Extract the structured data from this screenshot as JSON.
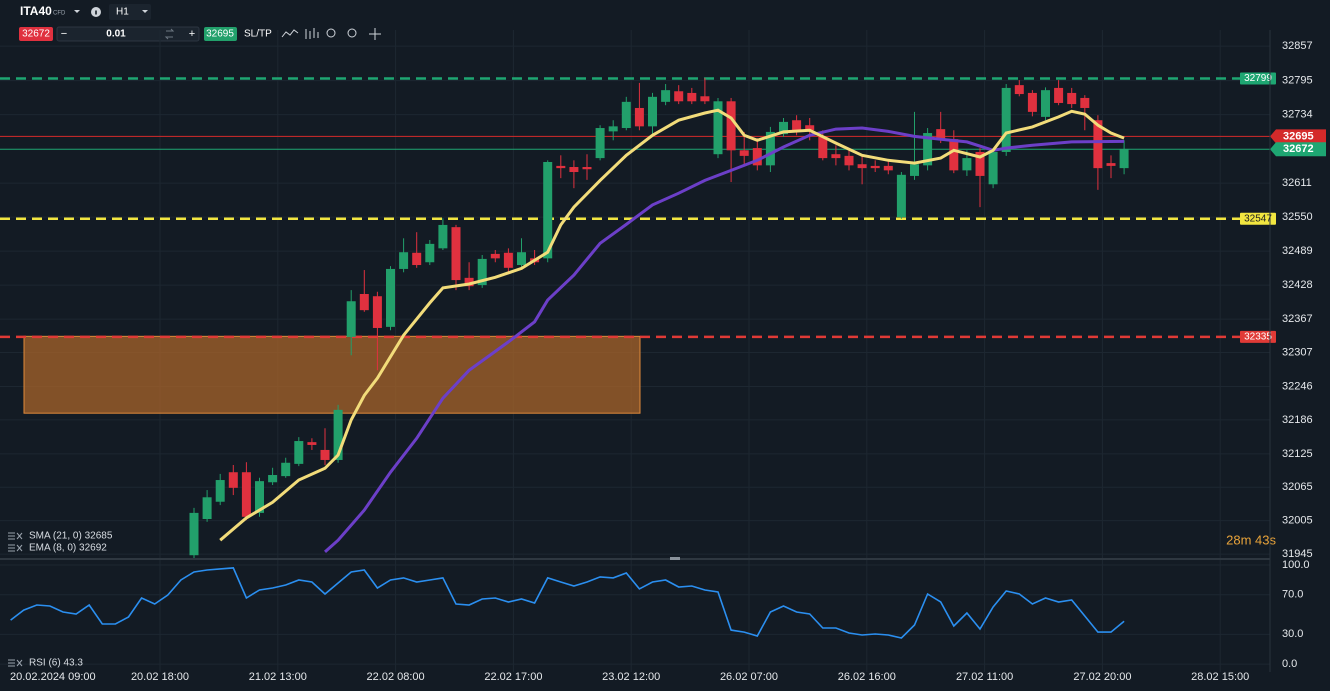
{
  "toolbar": {
    "symbol": "ITA40",
    "badge": "CFD",
    "timeframe": "H1",
    "bid": "32672",
    "volume": "0.01",
    "ask": "32695",
    "sltp": "SL/TP"
  },
  "chart_data": {
    "type": "candlestick",
    "candles": {
      "open": [
        31943,
        32008,
        32039,
        32092,
        32092,
        32019,
        32074,
        32085,
        32107,
        32146,
        32132,
        32114,
        32335,
        32412,
        32408,
        32353,
        32457,
        32486,
        32469,
        32494,
        32532,
        32441,
        32428,
        32484,
        32486,
        32464,
        32476,
        32476,
        32642,
        32640,
        32640,
        32656,
        32704,
        32710,
        32746,
        32713,
        32757,
        32776,
        32773,
        32767,
        32663,
        32758,
        32670,
        32674,
        32643,
        32699,
        32724,
        32715,
        32694,
        32663,
        32660,
        32645,
        32642,
        32642,
        32550,
        32624,
        32643,
        32708,
        32690,
        32634,
        32667,
        32609,
        32667,
        32787,
        32773,
        32730,
        32782,
        32773,
        32764,
        32724,
        32647,
        32638
      ],
      "high": [
        32028,
        32060,
        32089,
        32105,
        32110,
        32082,
        32100,
        32118,
        32155,
        32153,
        32171,
        32213,
        32419,
        32455,
        32416,
        32462,
        32512,
        32523,
        32509,
        32548,
        32536,
        32469,
        32482,
        32491,
        32494,
        32512,
        32491,
        32652,
        32661,
        32652,
        32663,
        32715,
        32724,
        32766,
        32791,
        32773,
        32789,
        32787,
        32782,
        32800,
        32764,
        32764,
        32703,
        32692,
        32712,
        32728,
        32733,
        32728,
        32706,
        32679,
        32670,
        32661,
        32652,
        32652,
        32631,
        32739,
        32710,
        32739,
        32706,
        32670,
        32674,
        32674,
        32789,
        32796,
        32778,
        32783,
        32796,
        32782,
        32769,
        32733,
        32661,
        32688
      ],
      "low": [
        31938,
        32003,
        32033,
        32051,
        32006,
        32012,
        32069,
        32082,
        32103,
        32132,
        32105,
        32109,
        32302,
        32380,
        32275,
        32347,
        32451,
        32459,
        32464,
        32491,
        32419,
        32419,
        32423,
        32469,
        32451,
        32459,
        32464,
        32469,
        32620,
        32602,
        32617,
        32652,
        32688,
        32706,
        32706,
        32696,
        32751,
        32753,
        32753,
        32753,
        32656,
        32613,
        32645,
        32634,
        32631,
        32694,
        32697,
        32688,
        32652,
        32643,
        32634,
        32609,
        32631,
        32627,
        32547,
        32617,
        32634,
        32683,
        32629,
        32624,
        32568,
        32602,
        32660,
        32767,
        32731,
        32724,
        32751,
        32746,
        32706,
        32599,
        32620,
        32627
      ],
      "close": [
        32019,
        32047,
        32078,
        32064,
        32012,
        32076,
        32087,
        32109,
        32148,
        32141,
        32114,
        32204,
        32399,
        32383,
        32351,
        32457,
        32487,
        32464,
        32502,
        32536,
        32437,
        32426,
        32475,
        32476,
        32459,
        32487,
        32469,
        32649,
        32638,
        32631,
        32636,
        32710,
        32713,
        32757,
        32713,
        32766,
        32778,
        32758,
        32758,
        32758,
        32758,
        32670,
        32660,
        32643,
        32703,
        32721,
        32706,
        32706,
        32656,
        32656,
        32643,
        32638,
        32638,
        32634,
        32626,
        32645,
        32701,
        32690,
        32634,
        32656,
        32624,
        32667,
        32782,
        32771,
        32739,
        32778,
        32755,
        32753,
        32746,
        32638,
        32642,
        32672
      ],
      "up_color": "#22a06b",
      "down_color": "#e0313f"
    },
    "ylim": [
      31938,
      32886
    ],
    "yticks": [
      32857,
      32795,
      32734,
      32611,
      32550,
      32489,
      32428,
      32367,
      32307,
      32246,
      32186,
      32125,
      32065,
      32005,
      31945
    ],
    "grid": true,
    "series": [
      {
        "name": "SMA (21, 0) 32685",
        "color": "#6c3fc8",
        "x": [
          10,
          11,
          13,
          15,
          17,
          19,
          21,
          24,
          26,
          27,
          29,
          31,
          33,
          35,
          37,
          39,
          41,
          43,
          45,
          47,
          49,
          51,
          53,
          55,
          57,
          59,
          61,
          62,
          64,
          67,
          71
        ],
        "values": [
          31949,
          31970,
          32024,
          32092,
          32153,
          32225,
          32275,
          32326,
          32362,
          32401,
          32446,
          32503,
          32537,
          32572,
          32593,
          32616,
          32634,
          32652,
          32676,
          32697,
          32708,
          32710,
          32704,
          32695,
          32690,
          32685,
          32670,
          32674,
          32679,
          32685,
          32686
        ]
      },
      {
        "name": "EMA (8, 0) 32692",
        "color": "#f2dc7a",
        "x": [
          2,
          4,
          6,
          8,
          10,
          11,
          12,
          13,
          14,
          16,
          18,
          19,
          21,
          23,
          25,
          27,
          28,
          29,
          31,
          33,
          35,
          37,
          39,
          40,
          41,
          42,
          43,
          45,
          47,
          49,
          51,
          53,
          55,
          57,
          58,
          60,
          61,
          62,
          64,
          66,
          67,
          68,
          69,
          70,
          71
        ],
        "values": [
          31970,
          32010,
          32038,
          32078,
          32099,
          32123,
          32186,
          32230,
          32261,
          32338,
          32396,
          32423,
          32430,
          32442,
          32458,
          32487,
          32536,
          32568,
          32616,
          32661,
          32697,
          32724,
          32737,
          32742,
          32728,
          32697,
          32688,
          32703,
          32706,
          32683,
          32661,
          32652,
          32647,
          32656,
          32670,
          32658,
          32670,
          32701,
          32712,
          32730,
          32740,
          32735,
          32715,
          32701,
          32692
        ]
      }
    ],
    "levels": [
      {
        "value": 32799,
        "color": "#1ea672",
        "style": "dashed"
      },
      {
        "value": 32695,
        "color": "#d42a2a",
        "style": "solid"
      },
      {
        "value": 32672,
        "color": "#1ea672",
        "style": "solid"
      },
      {
        "value": 32547,
        "color": "#f2e640",
        "style": "dashed"
      },
      {
        "value": 32335,
        "color": "#e03a36",
        "style": "dashed"
      }
    ],
    "zone": {
      "from": 32198,
      "to": 32336,
      "color": "#a8642a"
    },
    "timer": "28m 43s",
    "x_labels": [
      "20.02.2024 09:00",
      "20.02 18:00",
      "21.02 13:00",
      "22.02 08:00",
      "22.02 17:00",
      "23.02 12:00",
      "26.02 07:00",
      "26.02 16:00",
      "27.02 11:00",
      "27.02 20:00",
      "28.02 15:00"
    ],
    "rsi": {
      "type": "line",
      "name": "RSI (6) 43.3",
      "color": "#2b8ff0",
      "values": [
        44.4,
        54.5,
        59.6,
        58.6,
        52.5,
        50.5,
        59.6,
        40.4,
        40.4,
        47.5,
        66.7,
        60.6,
        69.7,
        84.8,
        92.9,
        94.9,
        96,
        97,
        66.7,
        74.7,
        76.8,
        79.8,
        84.8,
        82.8,
        70.7,
        81.8,
        92.9,
        94.9,
        76.8,
        84.8,
        86.9,
        82.8,
        84.8,
        86.9,
        60.6,
        59.6,
        65.7,
        66.7,
        62.6,
        65.7,
        61.6,
        86.9,
        82.8,
        78.8,
        82.8,
        87.9,
        86.9,
        91.9,
        75.8,
        82.8,
        84.8,
        77.8,
        78.8,
        74.7,
        72.7,
        34.3,
        32.3,
        28.3,
        52.5,
        58.6,
        52.5,
        50.5,
        36.4,
        36.4,
        31.3,
        29.3,
        30.3,
        29.3,
        26.3,
        39.4,
        70.7,
        62.6,
        38.4,
        51.5,
        35.4,
        57.6,
        73.7,
        70.7,
        60.6,
        66.7,
        62.6,
        64.6,
        48.5,
        32.3,
        32.3,
        43.3
      ],
      "ylim": [
        -8,
        105
      ],
      "yticks": [
        {
          "value": 100,
          "label": "100.0"
        },
        {
          "value": 70,
          "label": "70.0"
        },
        {
          "value": 30,
          "label": "30.0"
        },
        {
          "value": 0,
          "label": "0.0"
        }
      ]
    }
  }
}
